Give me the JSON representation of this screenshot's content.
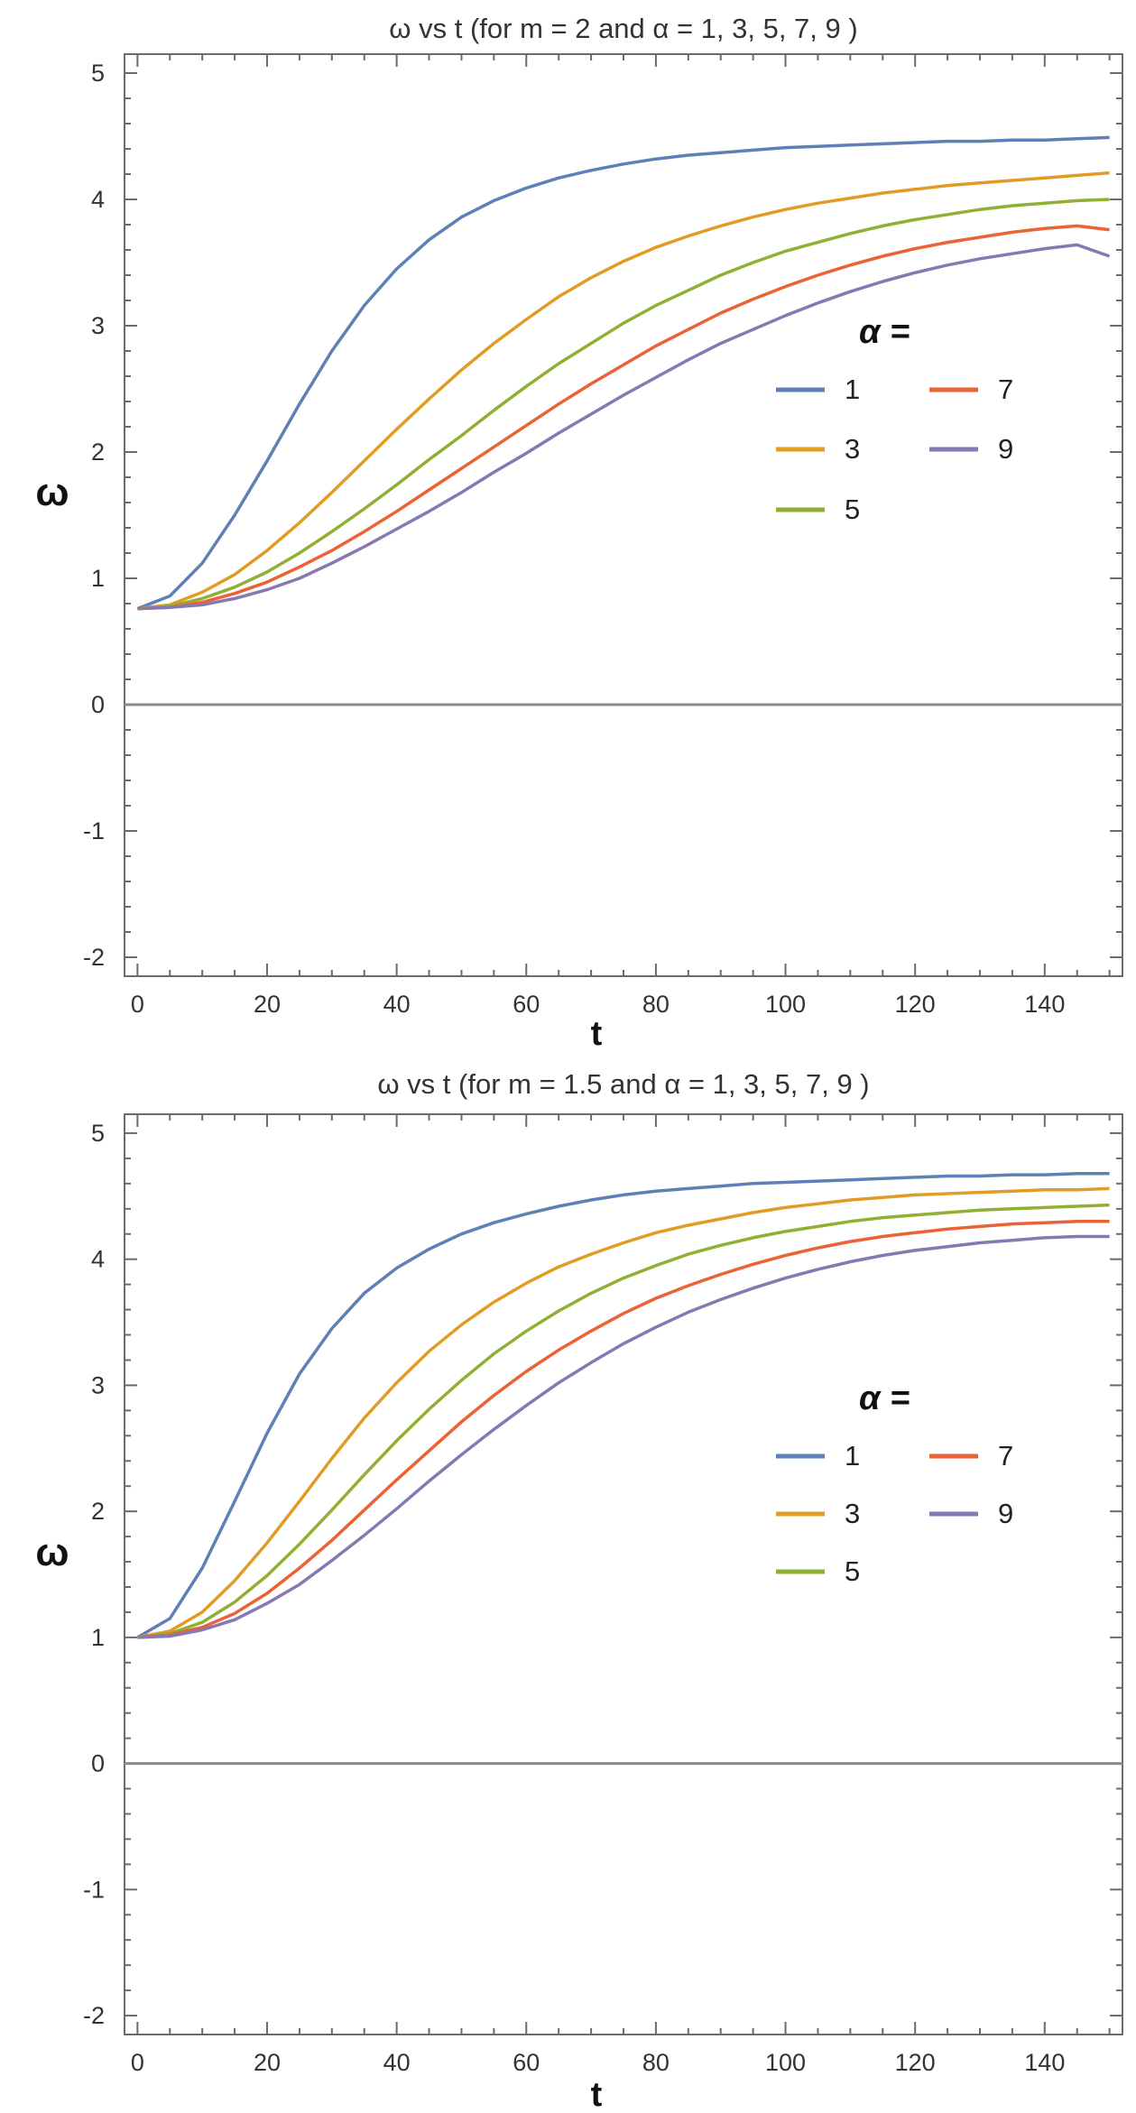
{
  "chart_data": [
    {
      "type": "line",
      "title": "ω vs t (for m = 2 and α = 1, 3, 5, 7, 9 )",
      "xlabel": "t",
      "ylabel": "ω",
      "xlim": [
        -2,
        152
      ],
      "ylim": [
        -2.15,
        5.15
      ],
      "xticks": [
        0,
        20,
        40,
        60,
        80,
        100,
        120,
        140
      ],
      "xtick_labels": [
        "0",
        "20",
        "40",
        "60",
        "80",
        "100",
        "120",
        "140"
      ],
      "yticks": [
        -2,
        -1,
        0,
        1,
        2,
        3,
        4,
        5
      ],
      "ytick_labels": [
        "-2",
        "-1",
        "0",
        "1",
        "2",
        "3",
        "4",
        "5"
      ],
      "grid": false,
      "zero_line": true,
      "legend_title": "α =",
      "legend_position": "right",
      "x": [
        0,
        5,
        10,
        15,
        20,
        25,
        30,
        35,
        40,
        45,
        50,
        55,
        60,
        65,
        70,
        75,
        80,
        85,
        90,
        95,
        100,
        105,
        110,
        115,
        120,
        125,
        130,
        135,
        140,
        145,
        150
      ],
      "series": [
        {
          "name": "1",
          "color": "#5e81b5",
          "values": [
            0.76,
            0.86,
            1.12,
            1.5,
            1.93,
            2.38,
            2.8,
            3.16,
            3.45,
            3.68,
            3.86,
            3.99,
            4.09,
            4.17,
            4.23,
            4.28,
            4.32,
            4.35,
            4.37,
            4.39,
            4.41,
            4.42,
            4.43,
            4.44,
            4.45,
            4.46,
            4.46,
            4.47,
            4.47,
            4.48,
            4.49
          ]
        },
        {
          "name": "3",
          "color": "#e19c24",
          "values": [
            0.76,
            0.79,
            0.89,
            1.03,
            1.22,
            1.44,
            1.68,
            1.93,
            2.18,
            2.42,
            2.65,
            2.86,
            3.05,
            3.23,
            3.38,
            3.51,
            3.62,
            3.71,
            3.79,
            3.86,
            3.92,
            3.97,
            4.01,
            4.05,
            4.08,
            4.11,
            4.13,
            4.15,
            4.17,
            4.19,
            4.21
          ]
        },
        {
          "name": "5",
          "color": "#8fb032",
          "values": [
            0.76,
            0.78,
            0.84,
            0.93,
            1.05,
            1.2,
            1.37,
            1.55,
            1.74,
            1.94,
            2.13,
            2.33,
            2.52,
            2.7,
            2.86,
            3.02,
            3.16,
            3.28,
            3.4,
            3.5,
            3.59,
            3.66,
            3.73,
            3.79,
            3.84,
            3.88,
            3.92,
            3.95,
            3.97,
            3.99,
            4.0
          ]
        },
        {
          "name": "7",
          "color": "#eb6235",
          "values": [
            0.76,
            0.77,
            0.81,
            0.88,
            0.97,
            1.09,
            1.22,
            1.37,
            1.53,
            1.7,
            1.87,
            2.04,
            2.21,
            2.38,
            2.54,
            2.69,
            2.84,
            2.97,
            3.1,
            3.21,
            3.31,
            3.4,
            3.48,
            3.55,
            3.61,
            3.66,
            3.7,
            3.74,
            3.77,
            3.79,
            3.76
          ]
        },
        {
          "name": "9",
          "color": "#8778b3",
          "values": [
            0.76,
            0.77,
            0.79,
            0.84,
            0.91,
            1.0,
            1.12,
            1.25,
            1.39,
            1.53,
            1.68,
            1.84,
            1.99,
            2.15,
            2.3,
            2.45,
            2.59,
            2.73,
            2.86,
            2.97,
            3.08,
            3.18,
            3.27,
            3.35,
            3.42,
            3.48,
            3.53,
            3.57,
            3.61,
            3.64,
            3.55
          ]
        }
      ]
    },
    {
      "type": "line",
      "title": "ω vs t (for m = 1.5 and α = 1, 3, 5, 7, 9 )",
      "xlabel": "t",
      "ylabel": "ω",
      "xlim": [
        -2,
        152
      ],
      "ylim": [
        -2.15,
        5.15
      ],
      "xticks": [
        0,
        20,
        40,
        60,
        80,
        100,
        120,
        140
      ],
      "xtick_labels": [
        "0",
        "20",
        "40",
        "60",
        "80",
        "100",
        "120",
        "140"
      ],
      "yticks": [
        -2,
        -1,
        0,
        1,
        2,
        3,
        4,
        5
      ],
      "ytick_labels": [
        "-2",
        "-1",
        "0",
        "1",
        "2",
        "3",
        "4",
        "5"
      ],
      "grid": false,
      "zero_line": true,
      "legend_title": "α =",
      "legend_position": "right",
      "x": [
        0,
        5,
        10,
        15,
        20,
        25,
        30,
        35,
        40,
        45,
        50,
        55,
        60,
        65,
        70,
        75,
        80,
        85,
        90,
        95,
        100,
        105,
        110,
        115,
        120,
        125,
        130,
        135,
        140,
        145,
        150
      ],
      "series": [
        {
          "name": "1",
          "color": "#5e81b5",
          "values": [
            1.0,
            1.15,
            1.55,
            2.08,
            2.62,
            3.09,
            3.45,
            3.73,
            3.93,
            4.08,
            4.2,
            4.29,
            4.36,
            4.42,
            4.47,
            4.51,
            4.54,
            4.56,
            4.58,
            4.6,
            4.61,
            4.62,
            4.63,
            4.64,
            4.65,
            4.66,
            4.66,
            4.67,
            4.67,
            4.68,
            4.68
          ]
        },
        {
          "name": "3",
          "color": "#e19c24",
          "values": [
            1.0,
            1.05,
            1.2,
            1.45,
            1.75,
            2.08,
            2.42,
            2.74,
            3.02,
            3.27,
            3.48,
            3.66,
            3.81,
            3.94,
            4.04,
            4.13,
            4.21,
            4.27,
            4.32,
            4.37,
            4.41,
            4.44,
            4.47,
            4.49,
            4.51,
            4.52,
            4.53,
            4.54,
            4.55,
            4.55,
            4.56
          ]
        },
        {
          "name": "5",
          "color": "#8fb032",
          "values": [
            1.0,
            1.03,
            1.12,
            1.28,
            1.49,
            1.74,
            2.01,
            2.29,
            2.56,
            2.81,
            3.04,
            3.25,
            3.43,
            3.59,
            3.73,
            3.85,
            3.95,
            4.04,
            4.11,
            4.17,
            4.22,
            4.26,
            4.3,
            4.33,
            4.35,
            4.37,
            4.39,
            4.4,
            4.41,
            4.42,
            4.43
          ]
        },
        {
          "name": "7",
          "color": "#eb6235",
          "values": [
            1.0,
            1.02,
            1.08,
            1.19,
            1.35,
            1.55,
            1.77,
            2.01,
            2.25,
            2.48,
            2.71,
            2.92,
            3.11,
            3.28,
            3.43,
            3.57,
            3.69,
            3.79,
            3.88,
            3.96,
            4.03,
            4.09,
            4.14,
            4.18,
            4.21,
            4.24,
            4.26,
            4.28,
            4.29,
            4.3,
            4.3
          ]
        },
        {
          "name": "9",
          "color": "#8778b3",
          "values": [
            1.0,
            1.01,
            1.06,
            1.14,
            1.27,
            1.42,
            1.61,
            1.81,
            2.02,
            2.24,
            2.45,
            2.65,
            2.84,
            3.02,
            3.18,
            3.33,
            3.46,
            3.58,
            3.68,
            3.77,
            3.85,
            3.92,
            3.98,
            4.03,
            4.07,
            4.1,
            4.13,
            4.15,
            4.17,
            4.18,
            4.18
          ]
        }
      ]
    }
  ]
}
